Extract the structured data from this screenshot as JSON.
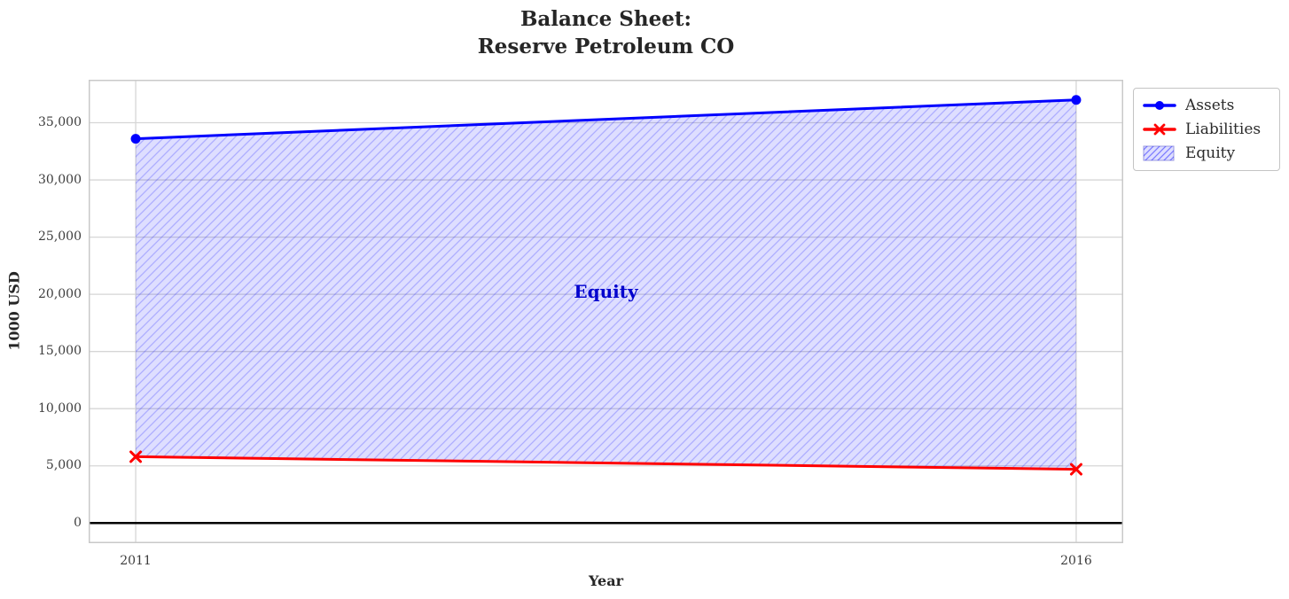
{
  "title": {
    "line1": "Balance Sheet:",
    "line2": "Reserve Petroleum CO"
  },
  "axes": {
    "xlabel": "Year",
    "ylabel": "1000 USD"
  },
  "legend": {
    "items": [
      {
        "label": "Assets",
        "swatch": "line-circle",
        "color": "#0000ff"
      },
      {
        "label": "Liabilities",
        "swatch": "line-x",
        "color": "#ff0000"
      },
      {
        "label": "Equity",
        "swatch": "hatched-patch",
        "color": "#0000ff"
      }
    ]
  },
  "chart_data": {
    "type": "line",
    "title": "Balance Sheet: Reserve Petroleum CO",
    "xlabel": "Year",
    "ylabel": "1000 USD",
    "x": [
      2011,
      2016
    ],
    "x_tick_labels": [
      "2011",
      "2016"
    ],
    "y_ticks": [
      0,
      5000,
      10000,
      15000,
      20000,
      25000,
      30000,
      35000
    ],
    "y_tick_labels": [
      "0",
      "5,000",
      "10,000",
      "15,000",
      "20,000",
      "25,000",
      "30,000",
      "35,000"
    ],
    "xlim": [
      2010.75,
      2016.25
    ],
    "ylim": [
      -1760,
      38760
    ],
    "grid": true,
    "legend_position": "outside-upper-right",
    "series": [
      {
        "name": "Assets",
        "values": [
          33600,
          37000
        ],
        "color": "#0000ff",
        "marker": "circle",
        "line_width": 3
      },
      {
        "name": "Liabilities",
        "values": [
          5800,
          4700
        ],
        "color": "#ff0000",
        "marker": "x",
        "line_width": 3
      }
    ],
    "fill_between": {
      "name": "Equity",
      "upper_series": "Assets",
      "lower_series": "Liabilities",
      "fill_color": "rgba(0,0,255,0.13)",
      "hatch": "///",
      "hatch_color": "rgba(0,0,255,0.22)"
    },
    "annotation": {
      "text": "Equity",
      "x": 2013.5,
      "y": 20250,
      "color": "#0000cd"
    },
    "zero_line": {
      "y": 0,
      "color": "#000000",
      "width": 2.5
    }
  },
  "style_colors": {
    "grid": "#d6d6d6",
    "spine": "#c9c9c9",
    "text": "#262626",
    "tick_text": "#3c3c3c",
    "background": "#ffffff"
  }
}
